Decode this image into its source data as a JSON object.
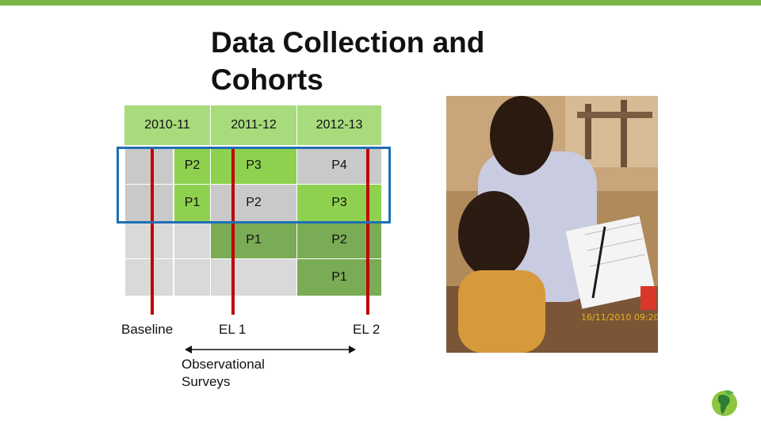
{
  "slide": {
    "title": "Data Collection and Cohorts",
    "accent_color": "#7ab648"
  },
  "table": {
    "headers": [
      "2010-11",
      "2011-12",
      "2012-13"
    ],
    "rows": [
      [
        "P2",
        "P3",
        "P4"
      ],
      [
        "P1",
        "P2",
        "P3"
      ],
      [
        "",
        "P1",
        "P2"
      ],
      [
        "",
        "",
        "P1"
      ]
    ]
  },
  "timeline": {
    "markers": [
      "Baseline",
      "EL 1",
      "EL 2"
    ],
    "arrow_label_lines": [
      "Observational",
      "Surveys"
    ]
  },
  "photo": {
    "timestamp": "16/11/2010 09:20",
    "icon": "photo-children-reading"
  },
  "logo": {
    "icon": "globe-leaf-logo-icon"
  }
}
